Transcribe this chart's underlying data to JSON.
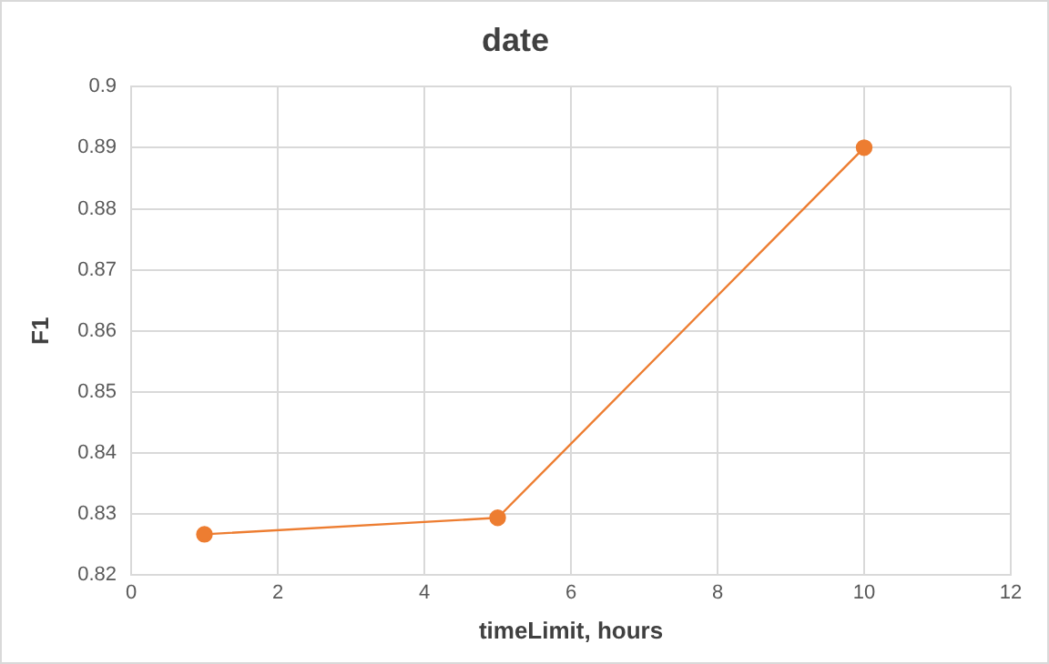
{
  "chart_data": {
    "type": "line",
    "title": "date",
    "xlabel": "timeLimit, hours",
    "ylabel": "F1",
    "x": [
      1,
      5,
      10
    ],
    "series": [
      {
        "color": "#ed7d31",
        "values": [
          0.8267,
          0.8294,
          0.89
        ]
      }
    ],
    "xlim": [
      0,
      12
    ],
    "xticks": [
      0,
      2,
      4,
      6,
      8,
      10,
      12
    ],
    "ylim": [
      0.82,
      0.9
    ],
    "yticks": [
      0.82,
      0.83,
      0.84,
      0.85,
      0.86,
      0.87,
      0.88,
      0.89,
      0.9
    ],
    "grid": true,
    "marker": "circle",
    "line_style": "solid",
    "legend": false
  }
}
